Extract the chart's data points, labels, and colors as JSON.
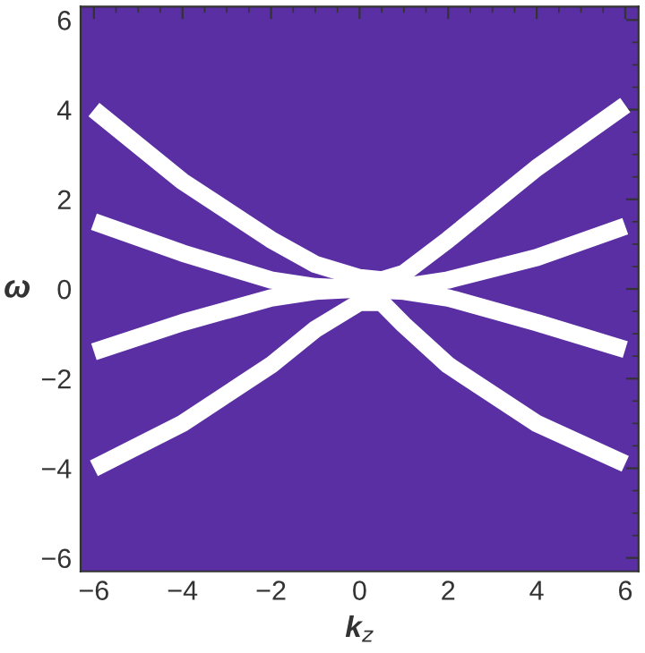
{
  "chart_data": {
    "type": "line",
    "xlabel": "k$_{z}$",
    "ylabel": "ω",
    "xlim": [
      -6.3,
      6.3
    ],
    "ylim": [
      -6.3,
      6.3
    ],
    "xticks": [
      {
        "value": -6,
        "label": "−6"
      },
      {
        "value": -4,
        "label": "−4"
      },
      {
        "value": -2,
        "label": "−2"
      },
      0,
      2,
      4,
      6
    ],
    "yticks": [
      {
        "value": -6,
        "label": "−6"
      },
      {
        "value": -4,
        "label": "−4"
      },
      {
        "value": -2,
        "label": "−2"
      },
      0,
      2,
      4,
      6
    ],
    "grid": false,
    "legend": false,
    "marker": "none",
    "line_style": "solid",
    "series": [
      {
        "color": "#ffffff",
        "x": [
          -6,
          -4,
          -2,
          -1,
          0,
          0.5,
          1,
          2,
          4,
          6
        ],
        "values": [
          4.0,
          2.4,
          1.1,
          0.55,
          0.25,
          0.2,
          0.35,
          1.1,
          2.7,
          4.1
        ]
      },
      {
        "color": "#ffffff",
        "x": [
          -6,
          -4,
          -2,
          -1,
          0,
          1,
          2,
          4,
          6
        ],
        "values": [
          1.5,
          0.8,
          0.2,
          0.05,
          0,
          0.05,
          0.2,
          0.7,
          1.4
        ]
      },
      {
        "color": "#ffffff",
        "x": [
          -6,
          -4,
          -2,
          -1,
          0,
          1,
          2,
          4,
          6
        ],
        "values": [
          -1.4,
          -0.75,
          -0.2,
          -0.05,
          0,
          -0.05,
          -0.2,
          -0.75,
          -1.35
        ]
      },
      {
        "color": "#ffffff",
        "x": [
          -6,
          -4,
          -2,
          -1,
          0,
          0.5,
          1,
          2,
          4,
          6
        ],
        "values": [
          -4.0,
          -3.0,
          -1.7,
          -0.9,
          -0.3,
          -0.3,
          -0.8,
          -1.7,
          -3.0,
          -3.9
        ]
      }
    ]
  }
}
